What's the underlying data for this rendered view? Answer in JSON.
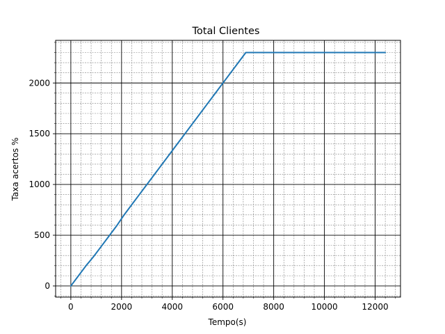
{
  "chart_data": {
    "type": "line",
    "title": "Total Clientes",
    "xlabel": "Tempo(s)",
    "ylabel": "Taxa acertos %",
    "xlim": [
      -600,
      13000
    ],
    "ylim": [
      -110,
      2420
    ],
    "xticks": [
      0,
      2000,
      4000,
      6000,
      8000,
      10000,
      12000
    ],
    "yticks": [
      0,
      500,
      1000,
      1500,
      2000
    ],
    "x_minor_step": 400,
    "y_minor_step": 100,
    "grid": true,
    "line_color": "#1f77b4",
    "series": [
      {
        "x": [
          0,
          300,
          600,
          900,
          1200,
          1500,
          1800,
          2100,
          2400,
          2700,
          3000,
          3300,
          3600,
          3900,
          4200,
          4500,
          4800,
          5100,
          5400,
          5700,
          6000,
          6300,
          6600,
          6900,
          7500,
          8000,
          9000,
          10000,
          11000,
          12000,
          12400
        ],
        "y": [
          0,
          100,
          200,
          290,
          390,
          490,
          590,
          700,
          800,
          900,
          1000,
          1100,
          1200,
          1300,
          1400,
          1500,
          1600,
          1700,
          1800,
          1900,
          2000,
          2100,
          2200,
          2300,
          2300,
          2300,
          2300,
          2300,
          2300,
          2300,
          2300
        ]
      }
    ]
  }
}
